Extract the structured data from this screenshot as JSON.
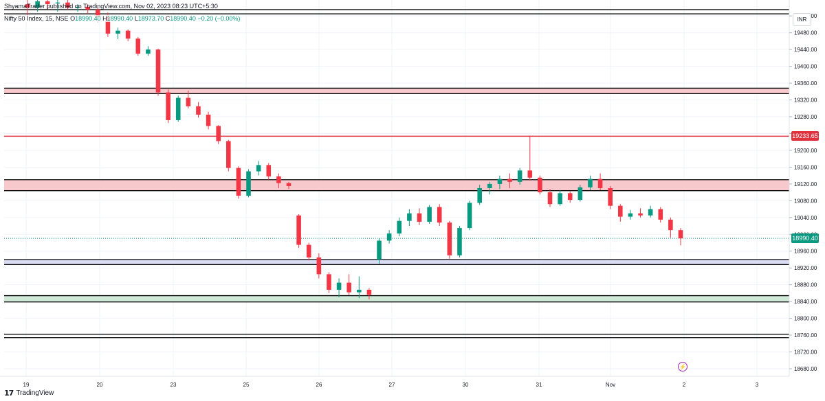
{
  "header": {
    "publisher_line": "ShyamaTrader published on TradingView.com, Nov 02, 2023 08:23 UTC+5:30",
    "symbol": "Nifty 50 Index, 15, NSE",
    "open_label": "O",
    "open": "18990.40",
    "high_label": "H",
    "high": "18990.40",
    "low_label": "L",
    "low": "18973.70",
    "close_label": "C",
    "close": "18990.40",
    "change": "−0.20 (−0.00%)"
  },
  "currency": "INR",
  "footer": {
    "logo_glyph": "17",
    "brand": "TradingView"
  },
  "colors": {
    "up": "#089981",
    "down": "#f23645",
    "zone_red": "#f7c9cc",
    "zone_blue": "#d9dcf2",
    "zone_green": "#cfe8d8",
    "level_line": "#000000",
    "marked_line": "#e0313f",
    "last_price_line": "#089981",
    "grid": "#f0f3fa",
    "lightning": "#9c27b0"
  },
  "lightning_icon": "lightning-icon",
  "chart_data": {
    "type": "candlestick",
    "title": "",
    "y_ticks": [
      "19520.00",
      "19480.00",
      "19440.00",
      "19400.00",
      "19360.00",
      "19320.00",
      "19280.00",
      "19240.00",
      "19200.00",
      "19160.00",
      "19120.00",
      "19080.00",
      "19040.00",
      "19000.00",
      "18960.00",
      "18920.00",
      "18880.00",
      "18840.00",
      "18800.00",
      "18760.00",
      "18720.00",
      "18680.00"
    ],
    "x_ticks": [
      "19",
      "20",
      "23",
      "25",
      "26",
      "27",
      "30",
      "31",
      "Nov",
      "2",
      "3"
    ],
    "ylim": [
      18662,
      19558
    ],
    "last_price": "18990.40",
    "marked_price": "19233.65",
    "zones": [
      {
        "kind": "red",
        "low": 19335,
        "high": 19348
      },
      {
        "kind": "red",
        "low": 19104,
        "high": 19130
      },
      {
        "kind": "blue",
        "low": 18928,
        "high": 18940
      },
      {
        "kind": "green",
        "low": 18839,
        "high": 18854
      }
    ],
    "levels": [
      19535,
      19525,
      19348,
      19335,
      19130,
      19104,
      18940,
      18928,
      18854,
      18839,
      18762,
      18754
    ],
    "candles": [
      {
        "t": "Oct 19 09:15",
        "o": 19548,
        "h": 19565,
        "l": 19515,
        "c": 19540
      },
      {
        "t": "Oct 19 11:15",
        "o": 19540,
        "h": 19560,
        "l": 19530,
        "c": 19555
      },
      {
        "t": "Oct 19 13:15",
        "o": 19555,
        "h": 19562,
        "l": 19535,
        "c": 19548
      },
      {
        "t": "Oct 20 09:15",
        "o": 19550,
        "h": 19566,
        "l": 19530,
        "c": 19552
      },
      {
        "t": "Oct 20 11:15",
        "o": 19552,
        "h": 19558,
        "l": 19535,
        "c": 19540
      },
      {
        "t": "Oct 20 13:15",
        "o": 19540,
        "h": 19548,
        "l": 19530,
        "c": 19542
      },
      {
        "t": "Oct 20 15:15",
        "o": 19542,
        "h": 19548,
        "l": 19525,
        "c": 19535
      },
      {
        "t": "Oct 23 09:15",
        "o": 19535,
        "h": 19540,
        "l": 19505,
        "c": 19518
      },
      {
        "t": "Oct 23 10:15",
        "o": 19518,
        "h": 19528,
        "l": 19470,
        "c": 19478
      },
      {
        "t": "Oct 23 12:15",
        "o": 19478,
        "h": 19492,
        "l": 19465,
        "c": 19485
      },
      {
        "t": "Oct 23 14:15",
        "o": 19485,
        "h": 19488,
        "l": 19460,
        "c": 19466
      },
      {
        "t": "Oct 23 15:15",
        "o": 19466,
        "h": 19470,
        "l": 19425,
        "c": 19430
      },
      {
        "t": "Oct 25 09:15",
        "o": 19430,
        "h": 19448,
        "l": 19425,
        "c": 19440
      },
      {
        "t": "Oct 25 10:15",
        "o": 19440,
        "h": 19442,
        "l": 19330,
        "c": 19338
      },
      {
        "t": "Oct 25 11:15",
        "o": 19338,
        "h": 19345,
        "l": 19265,
        "c": 19272
      },
      {
        "t": "Oct 25 12:15",
        "o": 19272,
        "h": 19330,
        "l": 19268,
        "c": 19325
      },
      {
        "t": "Oct 25 13:15",
        "o": 19325,
        "h": 19342,
        "l": 19300,
        "c": 19305
      },
      {
        "t": "Oct 25 14:15",
        "o": 19305,
        "h": 19315,
        "l": 19278,
        "c": 19285
      },
      {
        "t": "Oct 25 15:15",
        "o": 19285,
        "h": 19292,
        "l": 19250,
        "c": 19258
      },
      {
        "t": "Oct 26 09:15",
        "o": 19258,
        "h": 19260,
        "l": 19215,
        "c": 19222
      },
      {
        "t": "Oct 26 10:15",
        "o": 19222,
        "h": 19225,
        "l": 19150,
        "c": 19158
      },
      {
        "t": "Oct 26 11:15",
        "o": 19158,
        "h": 19162,
        "l": 19085,
        "c": 19092
      },
      {
        "t": "Oct 26 12:15",
        "o": 19092,
        "h": 19155,
        "l": 19088,
        "c": 19150
      },
      {
        "t": "Oct 26 13:15",
        "o": 19150,
        "h": 19175,
        "l": 19140,
        "c": 19165
      },
      {
        "t": "Oct 26 14:15",
        "o": 19165,
        "h": 19170,
        "l": 19130,
        "c": 19138
      },
      {
        "t": "Oct 26 15:15",
        "o": 19138,
        "h": 19145,
        "l": 19110,
        "c": 19122
      },
      {
        "t": "Oct 26 15:25",
        "o": 19122,
        "h": 19125,
        "l": 19108,
        "c": 19115
      },
      {
        "t": "Oct 27 09:15",
        "o": 19045,
        "h": 19048,
        "l": 18968,
        "c": 18975
      },
      {
        "t": "Oct 27 10:15",
        "o": 18975,
        "h": 18980,
        "l": 18938,
        "c": 18945
      },
      {
        "t": "Oct 27 11:15",
        "o": 18945,
        "h": 18955,
        "l": 18895,
        "c": 18905
      },
      {
        "t": "Oct 27 12:15",
        "o": 18905,
        "h": 18910,
        "l": 18860,
        "c": 18868
      },
      {
        "t": "Oct 27 13:15",
        "o": 18868,
        "h": 18895,
        "l": 18850,
        "c": 18885
      },
      {
        "t": "Oct 27 14:15",
        "o": 18885,
        "h": 18905,
        "l": 18855,
        "c": 18862
      },
      {
        "t": "Oct 27 15:15",
        "o": 18862,
        "h": 18900,
        "l": 18848,
        "c": 18868
      },
      {
        "t": "Oct 27 15:25",
        "o": 18868,
        "h": 18872,
        "l": 18845,
        "c": 18856
      },
      {
        "t": "Oct 30 09:15",
        "o": 18940,
        "h": 18990,
        "l": 18930,
        "c": 18985
      },
      {
        "t": "Oct 30 10:15",
        "o": 18985,
        "h": 19010,
        "l": 18978,
        "c": 19002
      },
      {
        "t": "Oct 30 11:15",
        "o": 19002,
        "h": 19040,
        "l": 18995,
        "c": 19032
      },
      {
        "t": "Oct 30 12:15",
        "o": 19032,
        "h": 19060,
        "l": 19020,
        "c": 19050
      },
      {
        "t": "Oct 30 13:15",
        "o": 19050,
        "h": 19062,
        "l": 19022,
        "c": 19030
      },
      {
        "t": "Oct 30 14:15",
        "o": 19030,
        "h": 19070,
        "l": 19025,
        "c": 19065
      },
      {
        "t": "Oct 30 15:15",
        "o": 19065,
        "h": 19072,
        "l": 19020,
        "c": 19028
      },
      {
        "t": "Oct 30 15:25",
        "o": 19028,
        "h": 19032,
        "l": 18942,
        "c": 18950
      },
      {
        "t": "Oct 31 09:15",
        "o": 18950,
        "h": 19020,
        "l": 18945,
        "c": 19015
      },
      {
        "t": "Oct 31 10:15",
        "o": 19015,
        "h": 19080,
        "l": 19010,
        "c": 19075
      },
      {
        "t": "Oct 31 11:15",
        "o": 19075,
        "h": 19118,
        "l": 19070,
        "c": 19110
      },
      {
        "t": "Oct 31 12:15",
        "o": 19110,
        "h": 19125,
        "l": 19095,
        "c": 19120
      },
      {
        "t": "Oct 31 13:15",
        "o": 19120,
        "h": 19140,
        "l": 19108,
        "c": 19132
      },
      {
        "t": "Oct 31 14:15",
        "o": 19132,
        "h": 19145,
        "l": 19110,
        "c": 19125
      },
      {
        "t": "Oct 31 15:15",
        "o": 19125,
        "h": 19158,
        "l": 19118,
        "c": 19152
      },
      {
        "t": "Nov 01 09:15",
        "o": 19152,
        "h": 19235,
        "l": 19128,
        "c": 19135
      },
      {
        "t": "Nov 01 10:15",
        "o": 19135,
        "h": 19140,
        "l": 19095,
        "c": 19100
      },
      {
        "t": "Nov 01 11:15",
        "o": 19100,
        "h": 19108,
        "l": 19065,
        "c": 19072
      },
      {
        "t": "Nov 01 12:15",
        "o": 19072,
        "h": 19105,
        "l": 19068,
        "c": 19098
      },
      {
        "t": "Nov 01 13:15",
        "o": 19098,
        "h": 19102,
        "l": 19075,
        "c": 19082
      },
      {
        "t": "Nov 01 14:15",
        "o": 19082,
        "h": 19118,
        "l": 19078,
        "c": 19112
      },
      {
        "t": "Nov 01 15:15",
        "o": 19112,
        "h": 19140,
        "l": 19105,
        "c": 19132
      },
      {
        "t": "Nov 01 15:25",
        "o": 19132,
        "h": 19145,
        "l": 19105,
        "c": 19110
      },
      {
        "t": "Nov 02 09:15",
        "o": 19110,
        "h": 19115,
        "l": 19060,
        "c": 19068
      },
      {
        "t": "Nov 02 10:15",
        "o": 19068,
        "h": 19072,
        "l": 19030,
        "c": 19042
      },
      {
        "t": "Nov 02 11:15",
        "o": 19042,
        "h": 19058,
        "l": 19035,
        "c": 19050
      },
      {
        "t": "Nov 02 12:15",
        "o": 19050,
        "h": 19062,
        "l": 19040,
        "c": 19045
      },
      {
        "t": "Nov 02 13:15",
        "o": 19045,
        "h": 19068,
        "l": 19040,
        "c": 19060
      },
      {
        "t": "Nov 02 14:15",
        "o": 19060,
        "h": 19065,
        "l": 19028,
        "c": 19035
      },
      {
        "t": "Nov 02 15:15",
        "o": 19035,
        "h": 19040,
        "l": 18992,
        "c": 19010
      },
      {
        "t": "Nov 02 15:25",
        "o": 19010,
        "h": 19015,
        "l": 18973.7,
        "c": 18990.4
      }
    ]
  }
}
